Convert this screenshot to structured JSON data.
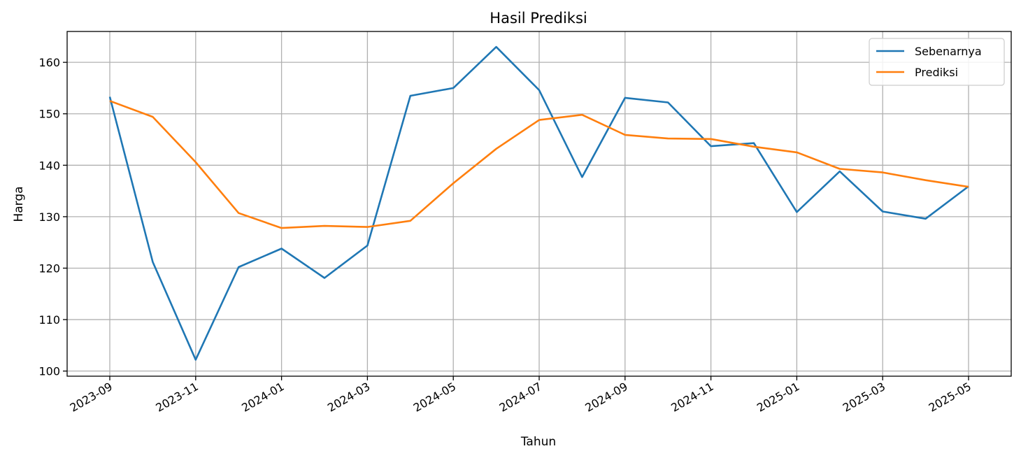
{
  "chart_data": {
    "type": "line",
    "title": "Hasil Prediksi",
    "xlabel": "Tahun",
    "ylabel": "Harga",
    "x": [
      "2023-09",
      "2023-10",
      "2023-11",
      "2023-12",
      "2024-01",
      "2024-02",
      "2024-03",
      "2024-04",
      "2024-05",
      "2024-06",
      "2024-07",
      "2024-08",
      "2024-09",
      "2024-10",
      "2024-11",
      "2024-12",
      "2025-01",
      "2025-02",
      "2025-03",
      "2025-04",
      "2025-05"
    ],
    "xticks": [
      "2023-09",
      "2023-11",
      "2024-01",
      "2024-03",
      "2024-05",
      "2024-07",
      "2024-09",
      "2024-11",
      "2025-01",
      "2025-03",
      "2025-05"
    ],
    "yticks": [
      100,
      110,
      120,
      130,
      140,
      150,
      160
    ],
    "ylim": [
      99,
      166
    ],
    "grid": true,
    "legend_position": "top-right",
    "series": [
      {
        "name": "Sebenarnya",
        "color": "#1f77b4",
        "values": [
          153.3,
          121.2,
          102.2,
          120.2,
          123.8,
          118.1,
          124.4,
          153.5,
          155.0,
          163.0,
          154.6,
          137.7,
          153.1,
          152.2,
          143.7,
          144.3,
          130.9,
          138.8,
          131.0,
          129.6,
          135.9
        ]
      },
      {
        "name": "Prediksi",
        "color": "#ff7f0e",
        "values": [
          152.5,
          149.4,
          140.6,
          130.7,
          127.8,
          128.2,
          128.0,
          129.2,
          136.5,
          143.2,
          148.8,
          149.8,
          145.9,
          145.2,
          145.1,
          143.6,
          142.5,
          139.3,
          138.6,
          137.1,
          135.8
        ]
      }
    ]
  }
}
